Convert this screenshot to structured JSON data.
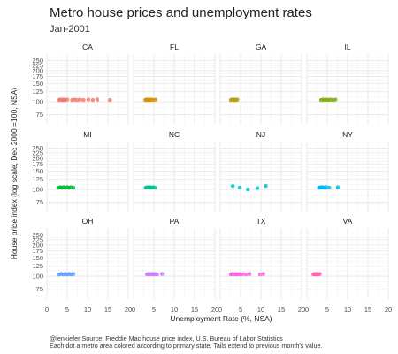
{
  "title": "Metro house prices and unemployment rates",
  "subtitle": "Jan-2001",
  "caption_line1": "@lenkiefer Source: Freddie Mac house price index, U.S. Bureau of Labor Statistics",
  "caption_line2": "Each dot a metro area colored according to primary state. Tails extend to previous month's value.",
  "chart_data": {
    "type": "scatter",
    "xlabel": "Unemployment Rate (%, NSA)",
    "ylabel": "House price index (log scale, Dec 2000 =100, NSA)",
    "xlim": [
      0,
      20
    ],
    "ylim": [
      60,
      290
    ],
    "y_scale": "log",
    "grid": true,
    "x_ticks": [
      0,
      5,
      10,
      15,
      20
    ],
    "y_ticks": [
      75,
      100,
      125,
      150,
      175,
      200,
      225,
      250
    ],
    "panels": [
      {
        "state": "CA",
        "color": "#F8766D",
        "points": [
          {
            "x": 3.0,
            "y": 104
          },
          {
            "x": 3.4,
            "y": 105
          },
          {
            "x": 3.8,
            "y": 104
          },
          {
            "x": 4.1,
            "y": 105
          },
          {
            "x": 4.5,
            "y": 104
          },
          {
            "x": 5.0,
            "y": 105
          },
          {
            "x": 6.2,
            "y": 104
          },
          {
            "x": 6.8,
            "y": 105
          },
          {
            "x": 7.4,
            "y": 104
          },
          {
            "x": 8.1,
            "y": 105
          },
          {
            "x": 9.0,
            "y": 104
          },
          {
            "x": 10.2,
            "y": 105
          },
          {
            "x": 11.3,
            "y": 104
          },
          {
            "x": 12.4,
            "y": 105
          },
          {
            "x": 15.5,
            "y": 104
          }
        ]
      },
      {
        "state": "FL",
        "color": "#DE8C00",
        "points": [
          {
            "x": 2.9,
            "y": 104
          },
          {
            "x": 3.2,
            "y": 105
          },
          {
            "x": 3.5,
            "y": 104
          },
          {
            "x": 3.8,
            "y": 105
          },
          {
            "x": 4.1,
            "y": 104
          },
          {
            "x": 4.4,
            "y": 105
          },
          {
            "x": 4.8,
            "y": 104
          },
          {
            "x": 5.4,
            "y": 105
          }
        ]
      },
      {
        "state": "GA",
        "color": "#B79F00",
        "points": [
          {
            "x": 2.6,
            "y": 104
          },
          {
            "x": 3.0,
            "y": 105
          },
          {
            "x": 3.3,
            "y": 104
          },
          {
            "x": 3.6,
            "y": 105
          },
          {
            "x": 3.9,
            "y": 104
          },
          {
            "x": 4.2,
            "y": 105
          }
        ]
      },
      {
        "state": "IL",
        "color": "#7CAE00",
        "points": [
          {
            "x": 3.5,
            "y": 104
          },
          {
            "x": 4.0,
            "y": 105
          },
          {
            "x": 4.4,
            "y": 104
          },
          {
            "x": 4.8,
            "y": 105
          },
          {
            "x": 5.3,
            "y": 104
          },
          {
            "x": 5.8,
            "y": 105
          },
          {
            "x": 6.4,
            "y": 104
          },
          {
            "x": 7.0,
            "y": 105
          }
        ]
      },
      {
        "state": "MI",
        "color": "#00BA38",
        "points": [
          {
            "x": 2.8,
            "y": 104
          },
          {
            "x": 3.3,
            "y": 105
          },
          {
            "x": 3.7,
            "y": 104
          },
          {
            "x": 4.1,
            "y": 105
          },
          {
            "x": 4.5,
            "y": 104
          },
          {
            "x": 5.0,
            "y": 105
          },
          {
            "x": 5.4,
            "y": 104
          },
          {
            "x": 5.9,
            "y": 105
          },
          {
            "x": 6.5,
            "y": 104
          }
        ]
      },
      {
        "state": "NC",
        "color": "#00C08B",
        "points": [
          {
            "x": 3.0,
            "y": 104
          },
          {
            "x": 3.4,
            "y": 105
          },
          {
            "x": 3.8,
            "y": 104
          },
          {
            "x": 4.1,
            "y": 105
          },
          {
            "x": 4.4,
            "y": 104
          },
          {
            "x": 4.8,
            "y": 105
          },
          {
            "x": 5.3,
            "y": 104
          }
        ]
      },
      {
        "state": "NJ",
        "color": "#00BFC4",
        "points": [
          {
            "x": 3.1,
            "y": 108
          },
          {
            "x": 4.8,
            "y": 104
          },
          {
            "x": 6.8,
            "y": 100
          },
          {
            "x": 9.1,
            "y": 103
          },
          {
            "x": 11.2,
            "y": 108
          }
        ]
      },
      {
        "state": "NY",
        "color": "#00B4F0",
        "points": [
          {
            "x": 3.0,
            "y": 104
          },
          {
            "x": 3.3,
            "y": 105
          },
          {
            "x": 3.6,
            "y": 104
          },
          {
            "x": 3.9,
            "y": 105
          },
          {
            "x": 4.3,
            "y": 104
          },
          {
            "x": 4.8,
            "y": 105
          },
          {
            "x": 5.5,
            "y": 104
          },
          {
            "x": 7.6,
            "y": 105
          }
        ]
      },
      {
        "state": "OH",
        "color": "#619CFF",
        "points": [
          {
            "x": 3.0,
            "y": 104
          },
          {
            "x": 3.5,
            "y": 105
          },
          {
            "x": 4.0,
            "y": 104
          },
          {
            "x": 4.5,
            "y": 105
          },
          {
            "x": 5.0,
            "y": 104
          },
          {
            "x": 5.5,
            "y": 105
          },
          {
            "x": 6.0,
            "y": 104
          },
          {
            "x": 6.5,
            "y": 105
          }
        ]
      },
      {
        "state": "PA",
        "color": "#C77CFF",
        "points": [
          {
            "x": 3.3,
            "y": 104
          },
          {
            "x": 3.7,
            "y": 105
          },
          {
            "x": 4.1,
            "y": 104
          },
          {
            "x": 4.5,
            "y": 105
          },
          {
            "x": 4.9,
            "y": 104
          },
          {
            "x": 5.3,
            "y": 105
          },
          {
            "x": 5.8,
            "y": 104
          },
          {
            "x": 7.0,
            "y": 105
          }
        ]
      },
      {
        "state": "TX",
        "color": "#F564E3",
        "points": [
          {
            "x": 2.6,
            "y": 104
          },
          {
            "x": 3.0,
            "y": 105
          },
          {
            "x": 3.4,
            "y": 104
          },
          {
            "x": 3.8,
            "y": 105
          },
          {
            "x": 4.2,
            "y": 104
          },
          {
            "x": 4.6,
            "y": 105
          },
          {
            "x": 5.1,
            "y": 104
          },
          {
            "x": 5.7,
            "y": 105
          },
          {
            "x": 6.4,
            "y": 104
          },
          {
            "x": 7.2,
            "y": 105
          },
          {
            "x": 9.8,
            "y": 104
          },
          {
            "x": 10.6,
            "y": 105
          }
        ]
      },
      {
        "state": "VA",
        "color": "#FF64B0",
        "points": [
          {
            "x": 1.6,
            "y": 104
          },
          {
            "x": 1.9,
            "y": 105
          },
          {
            "x": 2.2,
            "y": 104
          },
          {
            "x": 2.5,
            "y": 105
          },
          {
            "x": 2.8,
            "y": 104
          },
          {
            "x": 3.2,
            "y": 105
          }
        ]
      }
    ]
  }
}
